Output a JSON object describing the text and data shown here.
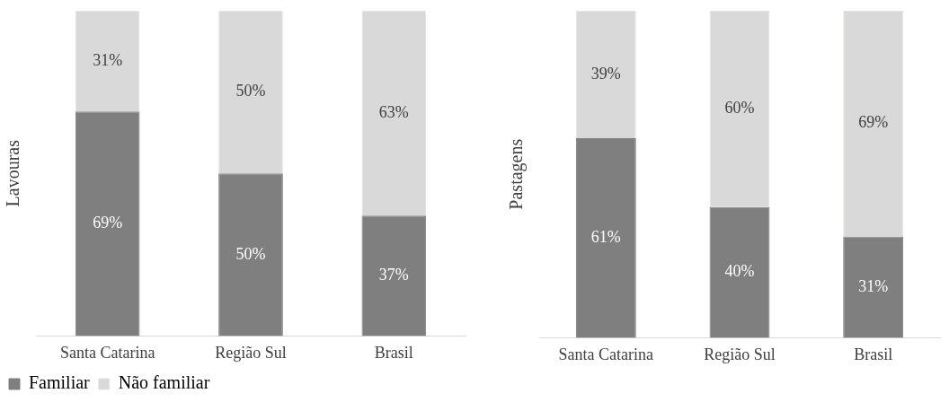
{
  "chart_data": [
    {
      "type": "bar",
      "stacked": true,
      "ylabel": "Lavouras",
      "categories": [
        "Santa Catarina",
        "Região Sul",
        "Brasil"
      ],
      "ylim": [
        0,
        100
      ],
      "tick_labels": "x",
      "legend": "bottom",
      "series": [
        {
          "name": "Familiar",
          "color": "#7f7f7f",
          "values": [
            69,
            50,
            37
          ],
          "value_labels": [
            "69%",
            "50%",
            "37%"
          ]
        },
        {
          "name": "Não familiar",
          "color": "#d9d9d9",
          "values": [
            31,
            50,
            63
          ],
          "value_labels": [
            "31%",
            "50%",
            "63%"
          ]
        }
      ]
    },
    {
      "type": "bar",
      "stacked": true,
      "ylabel": "Pastagens",
      "categories": [
        "Santa Catarina",
        "Região Sul",
        "Brasil"
      ],
      "ylim": [
        0,
        100
      ],
      "tick_labels": "x",
      "legend": false,
      "series": [
        {
          "color": "#7f7f7f",
          "values": [
            61,
            40,
            31
          ],
          "value_labels": [
            "61%",
            "40%",
            "31%"
          ]
        },
        {
          "color": "#d9d9d9",
          "values": [
            39,
            60,
            69
          ],
          "value_labels": [
            "39%",
            "60%",
            "69%"
          ]
        }
      ]
    }
  ]
}
